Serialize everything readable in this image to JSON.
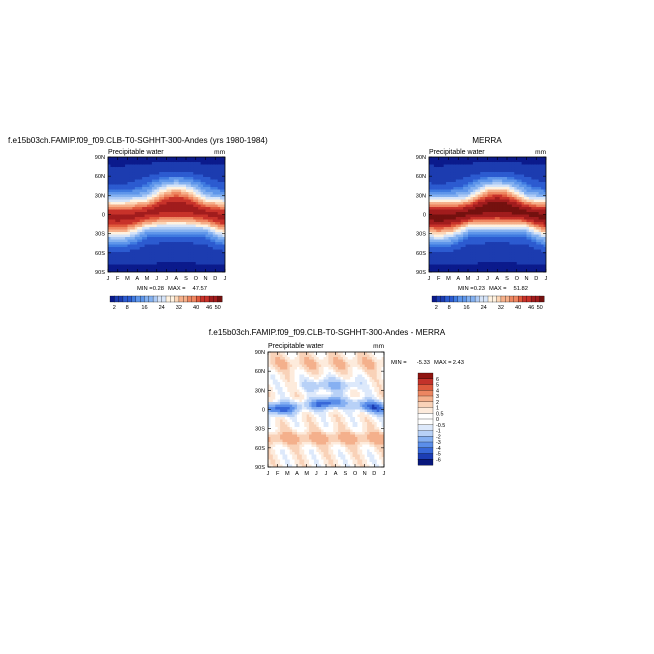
{
  "chart_data": [
    {
      "type": "heatmap",
      "title": "f.e15b03ch.FAMIP.f09_f09.CLB-T0-SGHHT-300-Andes (yrs 1980-1984)",
      "subtitle": "Precipitable water",
      "units": "mm",
      "stats": {
        "min_label": "MIN =",
        "min": "0.28",
        "max_label": "MAX =",
        "max": "47.57"
      },
      "x_ticks": [
        "J",
        "F",
        "M",
        "A",
        "M",
        "J",
        "J",
        "A",
        "S",
        "O",
        "N",
        "D",
        "J"
      ],
      "y_ticks": [
        "90N",
        "60N",
        "30N",
        "0",
        "30S",
        "60S",
        "90S"
      ],
      "colorbar": {
        "orientation": "horizontal",
        "levels": [
          2,
          4,
          6,
          8,
          10,
          12,
          14,
          16,
          18,
          20,
          22,
          24,
          26,
          28,
          30,
          32,
          34,
          36,
          38,
          40,
          42,
          44,
          46,
          48,
          50
        ],
        "labels": [
          "2",
          "8",
          "16",
          "24",
          "32",
          "40",
          "46",
          "50"
        ]
      },
      "peak_tropical_value": 47.57
    },
    {
      "type": "heatmap",
      "title": "MERRA",
      "subtitle": "Precipitable water",
      "units": "mm",
      "stats": {
        "min_label": "MIN =",
        "min": "0.23",
        "max_label": "MAX =",
        "max": "51.82"
      },
      "x_ticks": [
        "J",
        "F",
        "M",
        "A",
        "M",
        "J",
        "J",
        "A",
        "S",
        "O",
        "N",
        "D",
        "J"
      ],
      "y_ticks": [
        "90N",
        "60N",
        "30N",
        "0",
        "30S",
        "60S",
        "90S"
      ],
      "colorbar": {
        "orientation": "horizontal",
        "levels": [
          2,
          4,
          6,
          8,
          10,
          12,
          14,
          16,
          18,
          20,
          22,
          24,
          26,
          28,
          30,
          32,
          34,
          36,
          38,
          40,
          42,
          44,
          46,
          48,
          50
        ],
        "labels": [
          "2",
          "8",
          "16",
          "24",
          "32",
          "40",
          "46",
          "50"
        ]
      },
      "peak_tropical_value": 51.82
    },
    {
      "type": "heatmap",
      "title": "f.e15b03ch.FAMIP.f09_f09.CLB-T0-SGHHT-300-Andes - MERRA",
      "subtitle": "Precipitable water",
      "units": "mm",
      "stats": {
        "min_label": "MIN =",
        "min": "-5.33",
        "max_label": "MAX =",
        "max": "2.43"
      },
      "x_ticks": [
        "J",
        "F",
        "M",
        "A",
        "M",
        "J",
        "J",
        "A",
        "S",
        "O",
        "N",
        "D",
        "J"
      ],
      "y_ticks": [
        "90N",
        "60N",
        "30N",
        "0",
        "30S",
        "60S",
        "90S"
      ],
      "colorbar": {
        "orientation": "vertical",
        "levels": [
          -6,
          -5,
          -4,
          -3,
          -2,
          -1,
          -0.5,
          0,
          0.5,
          1,
          2,
          3,
          4,
          5,
          6
        ],
        "labels": [
          "6",
          "5",
          "4",
          "3",
          "2",
          "1",
          "0.5",
          "0",
          "-0.5",
          "-1",
          "-2",
          "-3",
          "-4",
          "-5",
          "-6"
        ]
      }
    }
  ],
  "colors": {
    "sequential": [
      "#0b1a8c",
      "#1c3cb0",
      "#2c5bd0",
      "#3f7ae0",
      "#5f96ea",
      "#84b1f0",
      "#aecbf5",
      "#d6e4f8",
      "#fff2e0",
      "#fcd6b6",
      "#f6b08a",
      "#ee8661",
      "#e05a3d",
      "#c8322a",
      "#a11c1d",
      "#74110f"
    ],
    "diverging": [
      "#08177c",
      "#1c3db4",
      "#3767d8",
      "#5b8ee9",
      "#86b0f2",
      "#b8d1f7",
      "#dde9fb",
      "#ffffff",
      "#fdebdc",
      "#f9d2b8",
      "#f4b08c",
      "#ec8661",
      "#dd5a3d",
      "#c3322a",
      "#8f1410"
    ]
  }
}
